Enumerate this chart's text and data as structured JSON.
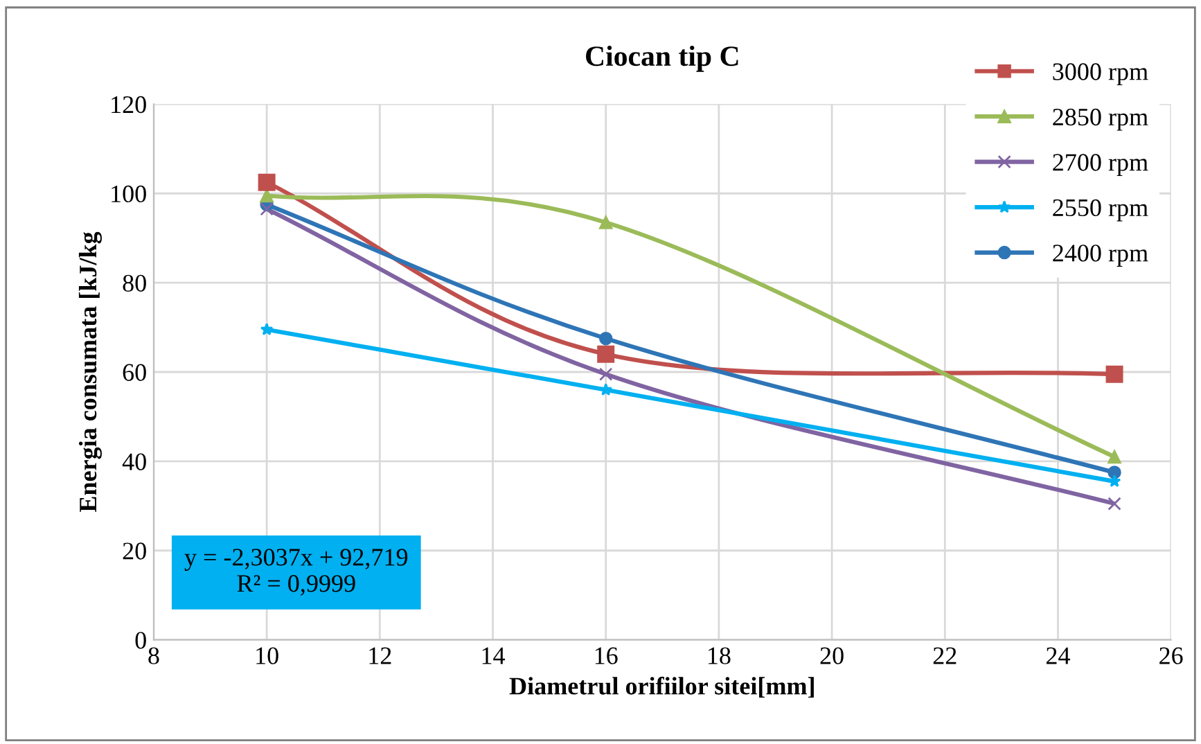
{
  "chart_data": {
    "type": "line",
    "title": "Ciocan tip C",
    "xlabel": "Diametrul orifiilor sitei[mm]",
    "ylabel": "Energia consumata [kJ/kg",
    "x": [
      10,
      16,
      25
    ],
    "series": [
      {
        "name": "3000 rpm",
        "color": "#c0504d",
        "marker": "square",
        "values": [
          102.5,
          64,
          59.5
        ]
      },
      {
        "name": "2850 rpm",
        "color": "#9bbb59",
        "marker": "triangle",
        "values": [
          99.5,
          93.5,
          41
        ]
      },
      {
        "name": "2700 rpm",
        "color": "#8064a2",
        "marker": "cross",
        "values": [
          96.5,
          59.5,
          30.5
        ]
      },
      {
        "name": "2550 rpm",
        "color": "#00b0f0",
        "marker": "star",
        "values": [
          69.5,
          56,
          35.5
        ]
      },
      {
        "name": "2400 rpm",
        "color": "#2e75b6",
        "marker": "circle",
        "values": [
          97.5,
          67.5,
          37.5
        ]
      }
    ],
    "xlim": [
      8,
      26
    ],
    "xticks": [
      8,
      10,
      12,
      14,
      16,
      18,
      20,
      22,
      24,
      26
    ],
    "ylim": [
      0,
      120
    ],
    "yticks": [
      0,
      20,
      40,
      60,
      80,
      100,
      120
    ],
    "grid": true,
    "legend": "top right",
    "annotations": [
      "y = -2,3037x + 92,719\nR² = 0,9999"
    ]
  }
}
